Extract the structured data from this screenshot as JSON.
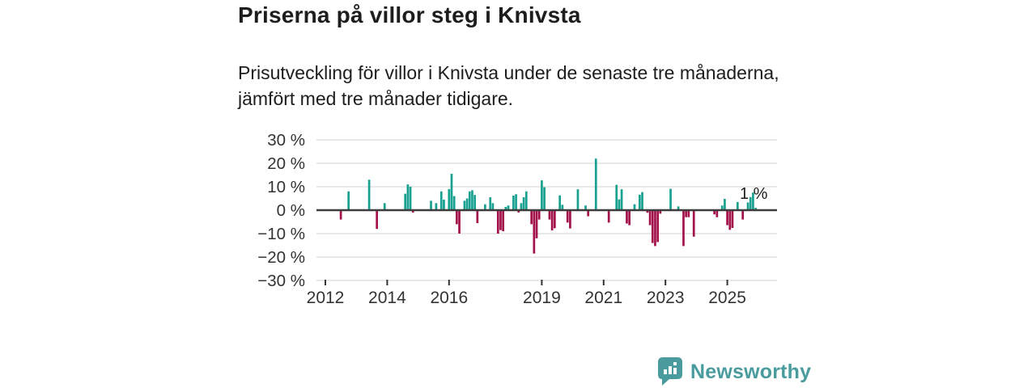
{
  "header": {
    "title": "Priserna på villor steg i Knivsta",
    "subtitle": "Prisutveckling för villor i Knivsta under de senaste tre månaderna, jämfört med tre månader tidigare."
  },
  "chart_data": {
    "type": "bar",
    "title": "Priserna på villor steg i Knivsta",
    "subtitle": "Prisutveckling för villor i Knivsta under de senaste tre månaderna, jämfört med tre månader tidigare.",
    "ylim": [
      -30,
      30
    ],
    "grid": "horizontal",
    "y_ticks": [
      30,
      20,
      10,
      0,
      -10,
      -20,
      -30
    ],
    "y_tick_labels": [
      "30 %",
      "20 %",
      "10 %",
      "0 %",
      "−10 %",
      "−20 %",
      "−30 %"
    ],
    "x_ticks": [
      {
        "year": 2012,
        "label": "2012"
      },
      {
        "year": 2014,
        "label": "2014"
      },
      {
        "year": 2016,
        "label": "2016"
      },
      {
        "year": 2019,
        "label": "2019"
      },
      {
        "year": 2021,
        "label": "2021"
      },
      {
        "year": 2023,
        "label": "2023"
      },
      {
        "year": 2025,
        "label": "2025"
      }
    ],
    "x_unit": "months since 2012-01, one bar per month where data exists",
    "bars": [
      [
        6,
        -4
      ],
      [
        9,
        8
      ],
      [
        17,
        13
      ],
      [
        20,
        -8
      ],
      [
        23,
        3
      ],
      [
        31,
        7
      ],
      [
        32,
        11
      ],
      [
        33,
        10
      ],
      [
        34,
        -1
      ],
      [
        41,
        4
      ],
      [
        43,
        3
      ],
      [
        45,
        8
      ],
      [
        46,
        4.5
      ],
      [
        48,
        9
      ],
      [
        49,
        15.5
      ],
      [
        50,
        6
      ],
      [
        51,
        -6
      ],
      [
        52,
        -10
      ],
      [
        54,
        4
      ],
      [
        55,
        5
      ],
      [
        56,
        8
      ],
      [
        57,
        8.5
      ],
      [
        58,
        6.5
      ],
      [
        59,
        -5.5
      ],
      [
        62,
        2.5
      ],
      [
        64,
        5.5
      ],
      [
        65,
        3
      ],
      [
        67,
        -10
      ],
      [
        68,
        -8.5
      ],
      [
        69,
        -9
      ],
      [
        70,
        1.4
      ],
      [
        71,
        2
      ],
      [
        73,
        6.2
      ],
      [
        74,
        6.8
      ],
      [
        75,
        -1
      ],
      [
        76,
        3
      ],
      [
        77,
        5.5
      ],
      [
        78,
        8
      ],
      [
        80,
        -6
      ],
      [
        81,
        -18.5
      ],
      [
        82,
        -12
      ],
      [
        83,
        -4
      ],
      [
        84,
        12.7
      ],
      [
        85,
        9.8
      ],
      [
        87,
        -4
      ],
      [
        88,
        -8.6
      ],
      [
        89,
        -7.7
      ],
      [
        91,
        6.3
      ],
      [
        92,
        2.3
      ],
      [
        94,
        -5.3
      ],
      [
        95,
        -7.8
      ],
      [
        98,
        8.9
      ],
      [
        101,
        2
      ],
      [
        102,
        -2.6
      ],
      [
        105,
        22
      ],
      [
        110,
        -5.3
      ],
      [
        113,
        10.8
      ],
      [
        114,
        4.6
      ],
      [
        115,
        8.9
      ],
      [
        117,
        -5.7
      ],
      [
        118,
        -6.4
      ],
      [
        120,
        2.5
      ],
      [
        122,
        6.6
      ],
      [
        123,
        7.7
      ],
      [
        125,
        -1.1
      ],
      [
        126,
        -6.4
      ],
      [
        127,
        -14
      ],
      [
        128,
        -15.3
      ],
      [
        129,
        -13.6
      ],
      [
        130,
        -1.5
      ],
      [
        134,
        9.1
      ],
      [
        137,
        1.6
      ],
      [
        139,
        -15.3
      ],
      [
        140,
        -3
      ],
      [
        141,
        -3
      ],
      [
        143,
        -11.3
      ],
      [
        151,
        -1.8
      ],
      [
        152,
        -3
      ],
      [
        154,
        2
      ],
      [
        155,
        4.8
      ],
      [
        156,
        -6.4
      ],
      [
        157,
        -8.4
      ],
      [
        158,
        -7.6
      ],
      [
        160,
        3.5
      ],
      [
        162,
        -4
      ],
      [
        164,
        3.3
      ],
      [
        165,
        5.6
      ],
      [
        166,
        7.5
      ],
      [
        167,
        1
      ]
    ],
    "annotation": {
      "text": "1 %"
    },
    "colors": {
      "positive": "#18a190",
      "negative": "#a3114a",
      "zero_line": "#3c3c3c",
      "gridline": "#dcdcdc",
      "axis_text": "#333333",
      "annotation_text": "#1d1d1b"
    },
    "legend": "none"
  },
  "footer": {
    "brand": "Newsworthy",
    "logo_color": "#4a9b9d"
  }
}
